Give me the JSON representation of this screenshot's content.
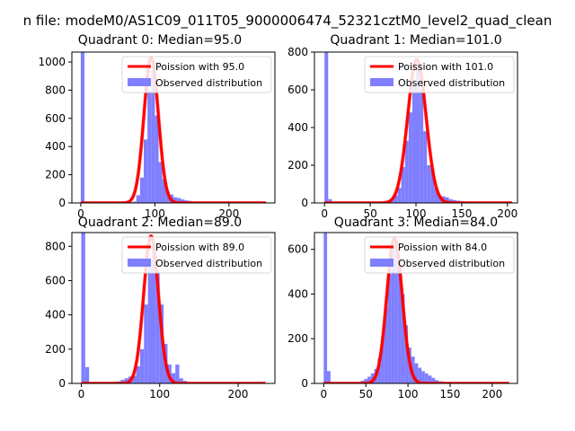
{
  "figure": {
    "suptitle": "n file: modeM0/AS1C09_011T05_9000006474_52321cztM0_level2_quad_clean"
  },
  "colors": {
    "hist": "#7f7fff",
    "fit": "#ff0000",
    "axes": "#000000",
    "legend_edge": "#d9d9d9"
  },
  "chart_data": [
    {
      "type": "bar",
      "title": "Quadrant 0: Median=95.0",
      "xlabel": "",
      "ylabel": "",
      "xlim": [
        -12,
        262
      ],
      "ylim": [
        0,
        1070
      ],
      "xticks": [
        0,
        100,
        200
      ],
      "yticks": [
        0,
        200,
        400,
        600,
        800,
        1000
      ],
      "legend": {
        "placement": "upper right",
        "entries": [
          "Poission with 95.0",
          "Observed distribution"
        ]
      },
      "hist": {
        "name": "Observed distribution",
        "bin_edges": [
          0,
          5,
          10,
          15,
          20,
          25,
          30,
          35,
          40,
          45,
          50,
          55,
          60,
          65,
          70,
          75,
          80,
          85,
          90,
          95,
          100,
          105,
          110,
          115,
          120,
          125,
          130,
          135,
          140,
          145,
          150,
          155,
          160,
          165,
          170,
          175,
          180,
          185,
          190,
          195,
          200,
          205,
          210,
          215,
          220,
          225,
          230,
          235,
          240,
          245,
          250
        ],
        "counts": [
          1070,
          0,
          0,
          0,
          0,
          0,
          0,
          0,
          0,
          0,
          0,
          0,
          0,
          5,
          10,
          55,
          180,
          450,
          800,
          940,
          620,
          290,
          170,
          80,
          60,
          40,
          35,
          25,
          18,
          14,
          10,
          8,
          6,
          5,
          4,
          3,
          3,
          2,
          2,
          1,
          1,
          1,
          0,
          0,
          0,
          0,
          0,
          0,
          0,
          0
        ]
      },
      "fit": {
        "name": "Poission with 95.0",
        "lambda": 95.0,
        "peak": 1030,
        "x_range": [
          0,
          250
        ]
      }
    },
    {
      "type": "bar",
      "title": "Quadrant 1: Median=101.0",
      "xlabel": "",
      "ylabel": "",
      "xlim": [
        -11,
        211
      ],
      "ylim": [
        0,
        800
      ],
      "xticks": [
        0,
        50,
        100,
        150,
        200
      ],
      "yticks": [
        0,
        200,
        400,
        600,
        800
      ],
      "legend": {
        "placement": "upper right",
        "entries": [
          "Poission with 101.0",
          "Observed distribution"
        ]
      },
      "hist": {
        "name": "Observed distribution",
        "bin_edges": [
          0,
          4,
          8,
          12,
          16,
          20,
          24,
          28,
          32,
          36,
          40,
          44,
          48,
          52,
          56,
          60,
          64,
          68,
          72,
          76,
          80,
          84,
          88,
          92,
          96,
          100,
          104,
          108,
          112,
          116,
          120,
          124,
          128,
          132,
          136,
          140,
          144,
          148,
          152,
          156,
          160,
          164,
          168,
          172,
          176,
          180,
          184,
          188,
          192,
          196,
          200
        ],
        "counts": [
          800,
          20,
          0,
          0,
          0,
          0,
          0,
          0,
          0,
          0,
          0,
          0,
          0,
          0,
          0,
          2,
          5,
          10,
          20,
          40,
          80,
          190,
          330,
          480,
          640,
          740,
          600,
          380,
          200,
          180,
          80,
          40,
          35,
          30,
          20,
          15,
          12,
          10,
          8,
          6,
          4,
          3,
          2,
          2,
          1,
          1,
          0,
          0,
          0,
          0
        ]
      },
      "fit": {
        "name": "Poission with 101.0",
        "lambda": 101.0,
        "peak": 760,
        "x_range": [
          0,
          205
        ]
      }
    },
    {
      "type": "bar",
      "title": "Quadrant 2: Median=89.0",
      "xlabel": "",
      "ylabel": "",
      "xlim": [
        -12,
        247
      ],
      "ylim": [
        0,
        880
      ],
      "xticks": [
        0,
        100,
        200
      ],
      "yticks": [
        0,
        200,
        400,
        600,
        800
      ],
      "legend": {
        "placement": "upper right",
        "entries": [
          "Poission with 89.0",
          "Observed distribution"
        ]
      },
      "hist": {
        "name": "Observed distribution",
        "bin_edges": [
          0,
          5,
          10,
          15,
          20,
          25,
          30,
          35,
          40,
          45,
          50,
          55,
          60,
          65,
          70,
          75,
          80,
          85,
          90,
          95,
          100,
          105,
          110,
          115,
          120,
          125,
          130,
          135,
          140,
          145,
          150,
          155,
          160,
          165,
          170,
          175,
          180,
          185,
          190,
          195,
          200,
          205,
          210,
          215,
          220,
          225,
          230,
          235
        ],
        "counts": [
          880,
          95,
          0,
          0,
          0,
          0,
          0,
          0,
          8,
          12,
          20,
          30,
          40,
          45,
          100,
          200,
          460,
          720,
          810,
          650,
          460,
          230,
          110,
          60,
          110,
          30,
          15,
          8,
          5,
          3,
          2,
          1,
          1,
          0,
          0,
          0,
          0,
          0,
          0,
          0,
          0,
          0,
          0,
          0,
          0,
          0,
          0
        ]
      },
      "fit": {
        "name": "Poission with 89.0",
        "lambda": 89.0,
        "peak": 860,
        "x_range": [
          0,
          235
        ]
      }
    },
    {
      "type": "bar",
      "title": "Quadrant 3: Median=84.0",
      "xlabel": "",
      "ylabel": "",
      "xlim": [
        -11,
        230
      ],
      "ylim": [
        0,
        675
      ],
      "xticks": [
        0,
        50,
        100,
        150,
        200
      ],
      "yticks": [
        0,
        200,
        400,
        600
      ],
      "legend": {
        "placement": "upper right",
        "entries": [
          "Poission with 84.0",
          "Observed distribution"
        ]
      },
      "hist": {
        "name": "Observed distribution",
        "bin_edges": [
          0,
          4,
          8,
          12,
          16,
          20,
          24,
          28,
          32,
          36,
          40,
          44,
          48,
          52,
          56,
          60,
          64,
          68,
          72,
          76,
          80,
          84,
          88,
          92,
          96,
          100,
          104,
          108,
          112,
          116,
          120,
          124,
          128,
          132,
          136,
          140,
          144,
          148,
          152,
          156,
          160,
          164,
          168,
          172,
          176,
          180,
          184,
          188,
          192,
          196,
          200,
          204,
          208,
          212,
          216,
          220
        ],
        "counts": [
          675,
          55,
          0,
          0,
          0,
          0,
          0,
          0,
          0,
          0,
          5,
          12,
          20,
          30,
          45,
          65,
          110,
          200,
          340,
          490,
          610,
          640,
          550,
          400,
          260,
          160,
          120,
          90,
          70,
          55,
          45,
          35,
          25,
          15,
          10,
          8,
          6,
          4,
          3,
          2,
          1,
          1,
          0,
          0,
          0,
          0,
          0,
          0,
          0,
          0,
          0,
          0,
          0,
          0,
          0
        ]
      },
      "fit": {
        "name": "Poission with 84.0",
        "lambda": 84.0,
        "peak": 650,
        "x_range": [
          0,
          220
        ]
      }
    }
  ]
}
